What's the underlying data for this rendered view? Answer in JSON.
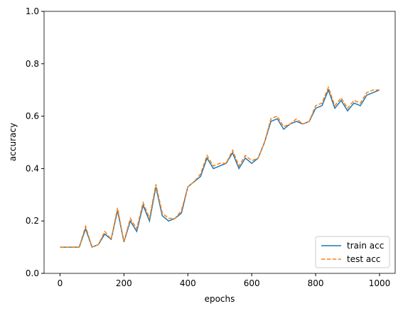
{
  "chart_data": {
    "type": "line",
    "x_label": "epochs",
    "y_label": "accuracy",
    "x": [
      0,
      20,
      40,
      60,
      80,
      100,
      120,
      140,
      160,
      180,
      200,
      220,
      240,
      260,
      280,
      300,
      320,
      340,
      360,
      380,
      400,
      420,
      440,
      460,
      480,
      500,
      520,
      540,
      560,
      580,
      600,
      620,
      640,
      660,
      680,
      700,
      720,
      740,
      760,
      780,
      800,
      820,
      840,
      860,
      880,
      900,
      920,
      940,
      960,
      980,
      1000
    ],
    "series": [
      {
        "name": "train acc",
        "color": "#1f77b4",
        "dash": "solid",
        "values": [
          0.1,
          0.1,
          0.1,
          0.1,
          0.17,
          0.1,
          0.11,
          0.15,
          0.13,
          0.24,
          0.12,
          0.2,
          0.16,
          0.26,
          0.2,
          0.33,
          0.22,
          0.2,
          0.21,
          0.23,
          0.33,
          0.35,
          0.37,
          0.44,
          0.4,
          0.41,
          0.42,
          0.46,
          0.4,
          0.44,
          0.42,
          0.44,
          0.5,
          0.58,
          0.59,
          0.55,
          0.57,
          0.58,
          0.57,
          0.58,
          0.63,
          0.64,
          0.7,
          0.63,
          0.66,
          0.62,
          0.65,
          0.64,
          0.68,
          0.69,
          0.7
        ]
      },
      {
        "name": "test acc",
        "color": "#ff7f0e",
        "dash": "dashed",
        "values": [
          0.1,
          0.1,
          0.1,
          0.1,
          0.18,
          0.1,
          0.11,
          0.16,
          0.13,
          0.25,
          0.12,
          0.21,
          0.17,
          0.27,
          0.21,
          0.34,
          0.23,
          0.21,
          0.21,
          0.24,
          0.33,
          0.35,
          0.38,
          0.45,
          0.41,
          0.42,
          0.42,
          0.47,
          0.41,
          0.45,
          0.43,
          0.44,
          0.5,
          0.59,
          0.6,
          0.56,
          0.57,
          0.59,
          0.57,
          0.58,
          0.64,
          0.65,
          0.71,
          0.64,
          0.67,
          0.63,
          0.66,
          0.65,
          0.69,
          0.7,
          0.7
        ]
      }
    ],
    "xlim": [
      -50,
      1049
    ],
    "ylim": [
      0,
      1
    ],
    "xticks": [
      0,
      200,
      400,
      600,
      800,
      1000
    ],
    "yticks": [
      {
        "value": 0,
        "label": "0.0"
      },
      0.2,
      0.4,
      0.6,
      0.8,
      {
        "value": 1,
        "label": "1.0"
      }
    ],
    "legend": "lower right"
  }
}
